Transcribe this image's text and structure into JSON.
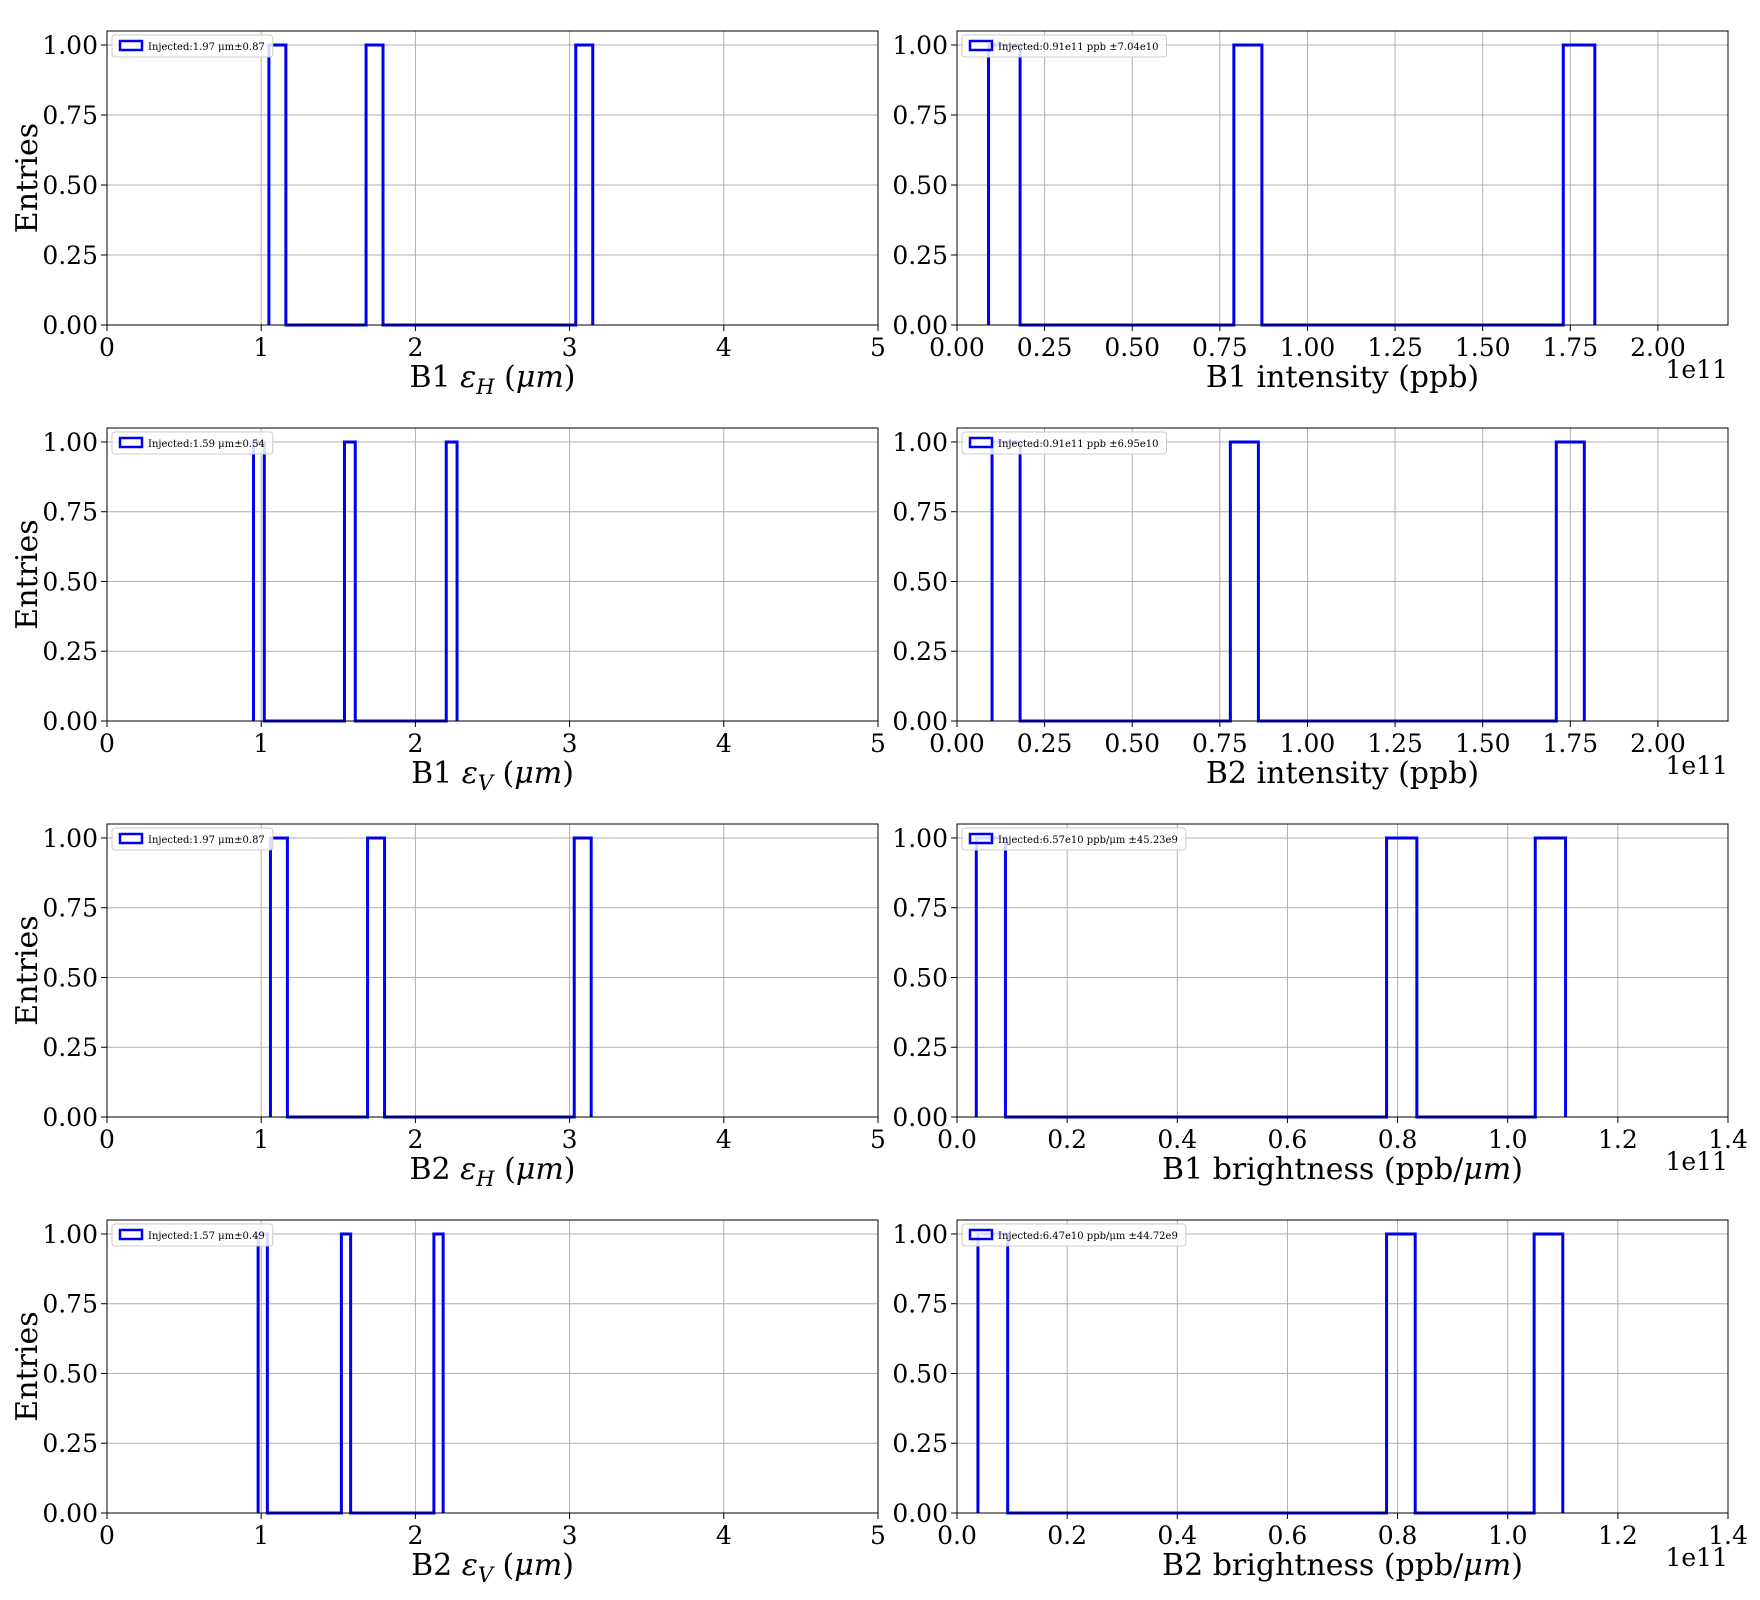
{
  "colors": {
    "histogram": "#0000ee",
    "grid": "#b0b0b0",
    "axes": "#000000"
  },
  "chart_data": [
    {
      "type": "histogram",
      "xlabel": "B1 εH (μm)",
      "xlabel_parts": [
        "B1 ",
        "ε",
        "H",
        " (",
        "μm",
        ")"
      ],
      "ylabel": "Entries",
      "legend": "Injected:1.97 μm±0.87",
      "legend_position": "top-left",
      "x_offset": "",
      "xlim": [
        0,
        5
      ],
      "ylim": [
        0,
        1.05
      ],
      "xticks": [
        0,
        1,
        2,
        3,
        4,
        5
      ],
      "xtick_labels": [
        "0",
        "1",
        "2",
        "3",
        "4",
        "5"
      ],
      "yticks": [
        0,
        0.25,
        0.5,
        0.75,
        1.0
      ],
      "ytick_labels": [
        "0.00",
        "0.25",
        "0.50",
        "0.75",
        "1.00"
      ],
      "grid": true,
      "bins": [
        [
          1.05,
          1.16,
          1
        ],
        [
          1.16,
          1.68,
          0
        ],
        [
          1.68,
          1.79,
          1
        ],
        [
          1.79,
          3.04,
          0
        ],
        [
          3.04,
          3.15,
          1
        ]
      ]
    },
    {
      "type": "histogram",
      "xlabel": "B1 intensity (ppb)",
      "xlabel_parts": [
        "B1 intensity (ppb)"
      ],
      "ylabel": "",
      "legend": "Injected:0.91e11 ppb ±7.04e10",
      "legend_position": "top-left",
      "x_offset": "1e11",
      "xlim": [
        0,
        2.2
      ],
      "ylim": [
        0,
        1.05
      ],
      "xticks": [
        0,
        0.25,
        0.5,
        0.75,
        1.0,
        1.25,
        1.5,
        1.75,
        2.0
      ],
      "xtick_labels": [
        "0.00",
        "0.25",
        "0.50",
        "0.75",
        "1.00",
        "1.25",
        "1.50",
        "1.75",
        "2.00"
      ],
      "yticks": [
        0,
        0.25,
        0.5,
        0.75,
        1.0
      ],
      "ytick_labels": [
        "0.00",
        "0.25",
        "0.50",
        "0.75",
        "1.00"
      ],
      "grid": true,
      "bins": [
        [
          0.09,
          0.18,
          1
        ],
        [
          0.18,
          0.79,
          0
        ],
        [
          0.79,
          0.87,
          1
        ],
        [
          0.87,
          1.73,
          0
        ],
        [
          1.73,
          1.82,
          1
        ]
      ]
    },
    {
      "type": "histogram",
      "xlabel": "B1 εV (μm)",
      "xlabel_parts": [
        "B1 ",
        "ε",
        "V",
        " (",
        "μm",
        ")"
      ],
      "ylabel": "Entries",
      "legend": "Injected:1.59 μm±0.54",
      "legend_position": "top-left",
      "x_offset": "",
      "xlim": [
        0,
        5
      ],
      "ylim": [
        0,
        1.05
      ],
      "xticks": [
        0,
        1,
        2,
        3,
        4,
        5
      ],
      "xtick_labels": [
        "0",
        "1",
        "2",
        "3",
        "4",
        "5"
      ],
      "yticks": [
        0,
        0.25,
        0.5,
        0.75,
        1.0
      ],
      "ytick_labels": [
        "0.00",
        "0.25",
        "0.50",
        "0.75",
        "1.00"
      ],
      "grid": true,
      "bins": [
        [
          0.95,
          1.02,
          1
        ],
        [
          1.02,
          1.54,
          0
        ],
        [
          1.54,
          1.61,
          1
        ],
        [
          1.61,
          2.2,
          0
        ],
        [
          2.2,
          2.27,
          1
        ]
      ]
    },
    {
      "type": "histogram",
      "xlabel": "B2 intensity (ppb)",
      "xlabel_parts": [
        "B2 intensity (ppb)"
      ],
      "ylabel": "",
      "legend": "Injected:0.91e11 ppb ±6.95e10",
      "legend_position": "top-left",
      "x_offset": "1e11",
      "xlim": [
        0,
        2.2
      ],
      "ylim": [
        0,
        1.05
      ],
      "xticks": [
        0,
        0.25,
        0.5,
        0.75,
        1.0,
        1.25,
        1.5,
        1.75,
        2.0
      ],
      "xtick_labels": [
        "0.00",
        "0.25",
        "0.50",
        "0.75",
        "1.00",
        "1.25",
        "1.50",
        "1.75",
        "2.00"
      ],
      "yticks": [
        0,
        0.25,
        0.5,
        0.75,
        1.0
      ],
      "ytick_labels": [
        "0.00",
        "0.25",
        "0.50",
        "0.75",
        "1.00"
      ],
      "grid": true,
      "bins": [
        [
          0.1,
          0.18,
          1
        ],
        [
          0.18,
          0.78,
          0
        ],
        [
          0.78,
          0.86,
          1
        ],
        [
          0.86,
          1.71,
          0
        ],
        [
          1.71,
          1.79,
          1
        ]
      ]
    },
    {
      "type": "histogram",
      "xlabel": "B2 εH (μm)",
      "xlabel_parts": [
        "B2 ",
        "ε",
        "H",
        " (",
        "μm",
        ")"
      ],
      "ylabel": "Entries",
      "legend": "Injected:1.97 μm±0.87",
      "legend_position": "top-left",
      "x_offset": "",
      "xlim": [
        0,
        5
      ],
      "ylim": [
        0,
        1.05
      ],
      "xticks": [
        0,
        1,
        2,
        3,
        4,
        5
      ],
      "xtick_labels": [
        "0",
        "1",
        "2",
        "3",
        "4",
        "5"
      ],
      "yticks": [
        0,
        0.25,
        0.5,
        0.75,
        1.0
      ],
      "ytick_labels": [
        "0.00",
        "0.25",
        "0.50",
        "0.75",
        "1.00"
      ],
      "grid": true,
      "bins": [
        [
          1.06,
          1.17,
          1
        ],
        [
          1.17,
          1.69,
          0
        ],
        [
          1.69,
          1.8,
          1
        ],
        [
          1.8,
          3.03,
          0
        ],
        [
          3.03,
          3.14,
          1
        ]
      ]
    },
    {
      "type": "histogram",
      "xlabel": "B1 brightness (ppb/μm)",
      "xlabel_parts": [
        "B1 brightness (ppb/",
        "μm",
        ")"
      ],
      "ylabel": "",
      "legend": "Injected:6.57e10 ppb/μm ±45.23e9",
      "legend_position": "top-left",
      "x_offset": "1e11",
      "xlim": [
        0,
        1.4
      ],
      "ylim": [
        0,
        1.05
      ],
      "xticks": [
        0,
        0.2,
        0.4,
        0.6,
        0.8,
        1.0,
        1.2,
        1.4
      ],
      "xtick_labels": [
        "0.0",
        "0.2",
        "0.4",
        "0.6",
        "0.8",
        "1.0",
        "1.2",
        "1.4"
      ],
      "yticks": [
        0,
        0.25,
        0.5,
        0.75,
        1.0
      ],
      "ytick_labels": [
        "0.00",
        "0.25",
        "0.50",
        "0.75",
        "1.00"
      ],
      "grid": true,
      "bins": [
        [
          0.035,
          0.088,
          1
        ],
        [
          0.088,
          0.78,
          0
        ],
        [
          0.78,
          0.835,
          1
        ],
        [
          0.835,
          1.05,
          0
        ],
        [
          1.05,
          1.105,
          1
        ]
      ]
    },
    {
      "type": "histogram",
      "xlabel": "B2 εV (μm)",
      "xlabel_parts": [
        "B2 ",
        "ε",
        "V",
        " (",
        "μm",
        ")"
      ],
      "ylabel": "Entries",
      "legend": "Injected:1.57 μm±0.49",
      "legend_position": "top-left",
      "x_offset": "",
      "xlim": [
        0,
        5
      ],
      "ylim": [
        0,
        1.05
      ],
      "xticks": [
        0,
        1,
        2,
        3,
        4,
        5
      ],
      "xtick_labels": [
        "0",
        "1",
        "2",
        "3",
        "4",
        "5"
      ],
      "yticks": [
        0,
        0.25,
        0.5,
        0.75,
        1.0
      ],
      "ytick_labels": [
        "0.00",
        "0.25",
        "0.50",
        "0.75",
        "1.00"
      ],
      "grid": true,
      "bins": [
        [
          0.98,
          1.04,
          1
        ],
        [
          1.04,
          1.52,
          0
        ],
        [
          1.52,
          1.58,
          1
        ],
        [
          1.58,
          2.12,
          0
        ],
        [
          2.12,
          2.18,
          1
        ]
      ]
    },
    {
      "type": "histogram",
      "xlabel": "B2 brightness (ppb/μm)",
      "xlabel_parts": [
        "B2 brightness (ppb/",
        "μm",
        ")"
      ],
      "ylabel": "",
      "legend": "Injected:6.47e10 ppb/μm ±44.72e9",
      "legend_position": "top-left",
      "x_offset": "1e11",
      "xlim": [
        0,
        1.4
      ],
      "ylim": [
        0,
        1.05
      ],
      "xticks": [
        0,
        0.2,
        0.4,
        0.6,
        0.8,
        1.0,
        1.2,
        1.4
      ],
      "xtick_labels": [
        "0.0",
        "0.2",
        "0.4",
        "0.6",
        "0.8",
        "1.0",
        "1.2",
        "1.4"
      ],
      "yticks": [
        0,
        0.25,
        0.5,
        0.75,
        1.0
      ],
      "ytick_labels": [
        "0.00",
        "0.25",
        "0.50",
        "0.75",
        "1.00"
      ],
      "grid": true,
      "bins": [
        [
          0.038,
          0.092,
          1
        ],
        [
          0.092,
          0.78,
          0
        ],
        [
          0.78,
          0.832,
          1
        ],
        [
          0.832,
          1.048,
          0
        ],
        [
          1.048,
          1.1,
          1
        ]
      ]
    }
  ]
}
